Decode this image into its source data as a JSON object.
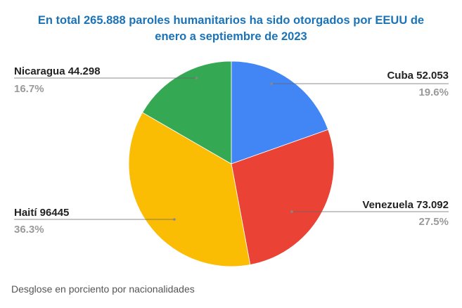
{
  "chart_data": {
    "type": "pie",
    "title_lines": [
      "En total 265.888 paroles humanitarios ha sido otorgados por EEUU de",
      "enero a septiembre de 2023"
    ],
    "footer": "Desglose en porciento por nacionalidades",
    "slices": [
      {
        "label": "Cuba 52.053",
        "value": 52053,
        "percent": "19.6%",
        "color": "#4285f4"
      },
      {
        "label": "Venezuela 73.092",
        "value": 73092,
        "percent": "27.5%",
        "color": "#ea4335"
      },
      {
        "label": "Haití 96445",
        "value": 96445,
        "percent": "36.3%",
        "color": "#fbbc04"
      },
      {
        "label": "Nicaragua 44.298",
        "value": 44298,
        "percent": "16.7%",
        "color": "#34a853"
      }
    ]
  }
}
